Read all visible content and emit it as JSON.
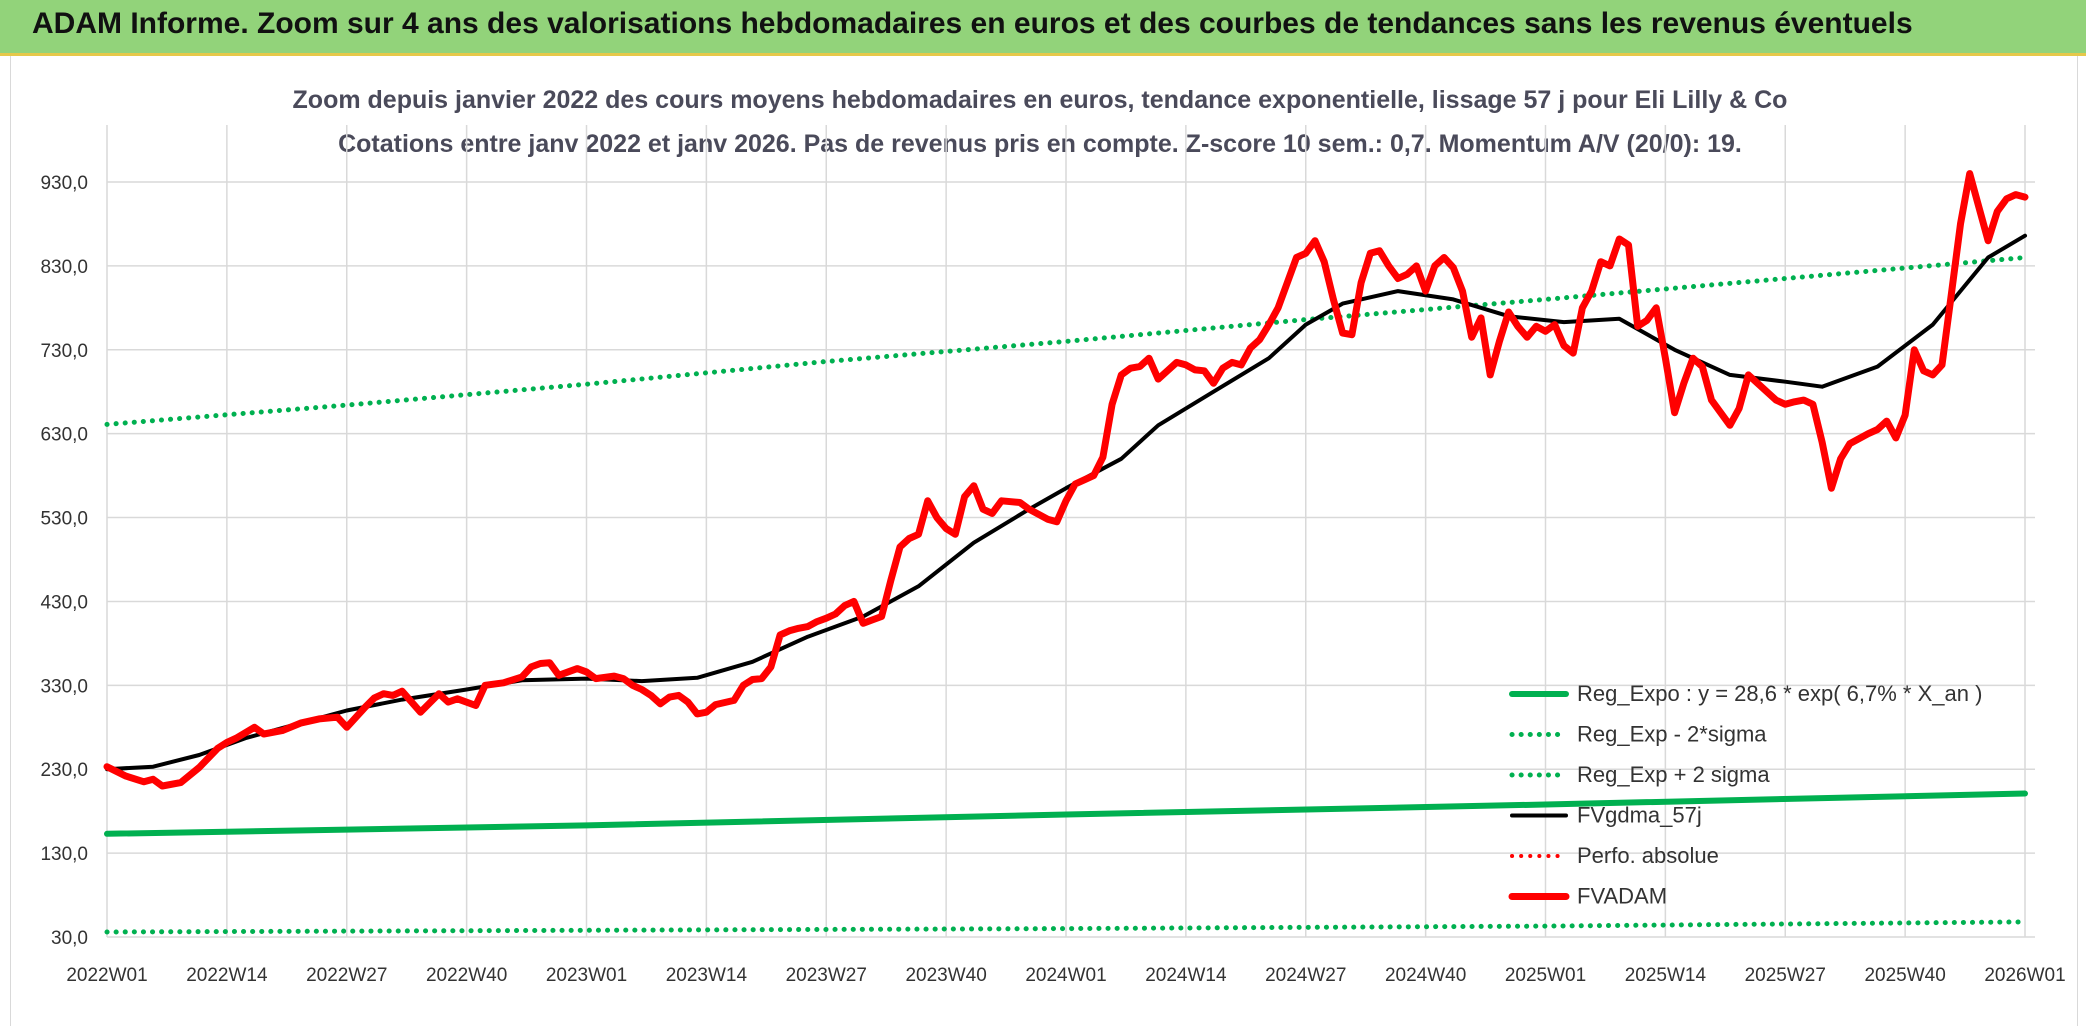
{
  "banner": {
    "title": "ADAM Informe. Zoom sur 4 ans des valorisations hebdomadaires en euros et des courbes de tendances sans les revenus éventuels"
  },
  "chart_data": {
    "type": "line",
    "title": "Zoom depuis janvier 2022 des cours moyens hebdomadaires en euros, tendance exponentielle, lissage 57 j pour Eli Lilly & Co",
    "subtitle": "Cotations entre janv 2022 et janv 2026. Pas de revenus pris en compte. Z-score 10 sem.: 0,7. Momentum A/V (20/0): 19.",
    "xlabel": "",
    "ylabel": "",
    "ylim": [
      30,
      980
    ],
    "grid": true,
    "y_ticks": [
      30,
      130,
      230,
      330,
      430,
      530,
      630,
      730,
      830,
      930
    ],
    "y_tick_labels": [
      "30,0",
      "130,0",
      "230,0",
      "330,0",
      "430,0",
      "530,0",
      "630,0",
      "730,0",
      "830,0",
      "930,0"
    ],
    "x_range_weeks": [
      0,
      208
    ],
    "x_ticks": [
      {
        "week": 0,
        "label": "2022W01"
      },
      {
        "week": 13,
        "label": "2022W14"
      },
      {
        "week": 26,
        "label": "2022W27"
      },
      {
        "week": 39,
        "label": "2022W40"
      },
      {
        "week": 52,
        "label": "2023W01"
      },
      {
        "week": 65,
        "label": "2023W14"
      },
      {
        "week": 78,
        "label": "2023W27"
      },
      {
        "week": 91,
        "label": "2023W40"
      },
      {
        "week": 104,
        "label": "2024W01"
      },
      {
        "week": 117,
        "label": "2024W14"
      },
      {
        "week": 130,
        "label": "2024W27"
      },
      {
        "week": 143,
        "label": "2024W40"
      },
      {
        "week": 156,
        "label": "2025W01"
      },
      {
        "week": 169,
        "label": "2025W14"
      },
      {
        "week": 182,
        "label": "2025W27"
      },
      {
        "week": 195,
        "label": "2025W40"
      },
      {
        "week": 208,
        "label": "2026W01"
      }
    ],
    "series": [
      {
        "name": "Reg_Expo : y = 28,6 * exp( 6,7% *  X_an )",
        "color": "#00b050",
        "style": "solid",
        "width": 6,
        "points": [
          [
            0,
            153
          ],
          [
            52,
            163
          ],
          [
            104,
            176
          ],
          [
            156,
            188
          ],
          [
            208,
            201
          ]
        ]
      },
      {
        "name": "Reg_Exp - 2*sigma",
        "color": "#00b050",
        "style": "dotted",
        "width": 5,
        "points": [
          [
            0,
            36
          ],
          [
            52,
            38
          ],
          [
            104,
            40
          ],
          [
            156,
            43
          ],
          [
            208,
            48
          ]
        ]
      },
      {
        "name": "Reg_Exp + 2 sigma",
        "color": "#00b050",
        "style": "dotted",
        "width": 5,
        "points": [
          [
            0,
            641
          ],
          [
            26,
            664
          ],
          [
            52,
            689
          ],
          [
            78,
            716
          ],
          [
            104,
            740
          ],
          [
            130,
            766
          ],
          [
            156,
            790
          ],
          [
            182,
            815
          ],
          [
            208,
            840
          ]
        ]
      },
      {
        "name": "FVgdma_57j",
        "color": "#000000",
        "style": "solid",
        "width": 4,
        "points": [
          [
            0,
            230
          ],
          [
            5,
            233
          ],
          [
            10,
            247
          ],
          [
            15,
            267
          ],
          [
            20,
            282
          ],
          [
            26,
            300
          ],
          [
            32,
            313
          ],
          [
            39,
            325
          ],
          [
            45,
            336
          ],
          [
            52,
            338
          ],
          [
            58,
            335
          ],
          [
            64,
            339
          ],
          [
            70,
            358
          ],
          [
            76,
            388
          ],
          [
            82,
            412
          ],
          [
            88,
            448
          ],
          [
            94,
            500
          ],
          [
            100,
            540
          ],
          [
            104,
            565
          ],
          [
            110,
            600
          ],
          [
            114,
            640
          ],
          [
            120,
            680
          ],
          [
            126,
            720
          ],
          [
            130,
            760
          ],
          [
            134,
            785
          ],
          [
            140,
            800
          ],
          [
            146,
            790
          ],
          [
            152,
            770
          ],
          [
            158,
            763
          ],
          [
            164,
            767
          ],
          [
            170,
            730
          ],
          [
            176,
            700
          ],
          [
            182,
            692
          ],
          [
            186,
            686
          ],
          [
            192,
            710
          ],
          [
            198,
            760
          ],
          [
            204,
            840
          ],
          [
            208,
            866
          ]
        ]
      },
      {
        "name": "Perfo. absolue",
        "color": "#ff0000",
        "style": "dotted",
        "width": 4,
        "points": []
      },
      {
        "name": "FVADAM",
        "color": "#ff0000",
        "style": "solid",
        "width": 7,
        "points": [
          [
            0,
            233
          ],
          [
            2,
            222
          ],
          [
            4,
            215
          ],
          [
            5,
            218
          ],
          [
            6,
            210
          ],
          [
            8,
            214
          ],
          [
            10,
            232
          ],
          [
            12,
            255
          ],
          [
            13,
            262
          ],
          [
            14,
            267
          ],
          [
            16,
            280
          ],
          [
            17,
            272
          ],
          [
            19,
            276
          ],
          [
            21,
            285
          ],
          [
            23,
            290
          ],
          [
            25,
            292
          ],
          [
            26,
            280
          ],
          [
            28,
            304
          ],
          [
            29,
            315
          ],
          [
            30,
            320
          ],
          [
            31,
            318
          ],
          [
            32,
            323
          ],
          [
            34,
            298
          ],
          [
            36,
            320
          ],
          [
            37,
            310
          ],
          [
            38,
            314
          ],
          [
            40,
            306
          ],
          [
            41,
            330
          ],
          [
            43,
            333
          ],
          [
            45,
            340
          ],
          [
            46,
            352
          ],
          [
            47,
            356
          ],
          [
            48,
            357
          ],
          [
            49,
            342
          ],
          [
            51,
            350
          ],
          [
            52,
            346
          ],
          [
            53,
            338
          ],
          [
            55,
            341
          ],
          [
            56,
            338
          ],
          [
            57,
            330
          ],
          [
            58,
            325
          ],
          [
            59,
            318
          ],
          [
            60,
            308
          ],
          [
            61,
            316
          ],
          [
            62,
            318
          ],
          [
            63,
            310
          ],
          [
            64,
            296
          ],
          [
            65,
            298
          ],
          [
            66,
            307
          ],
          [
            68,
            312
          ],
          [
            69,
            330
          ],
          [
            70,
            337
          ],
          [
            71,
            338
          ],
          [
            72,
            352
          ],
          [
            73,
            390
          ],
          [
            74,
            395
          ],
          [
            75,
            398
          ],
          [
            76,
            400
          ],
          [
            77,
            406
          ],
          [
            78,
            410
          ],
          [
            79,
            415
          ],
          [
            80,
            425
          ],
          [
            81,
            430
          ],
          [
            82,
            404
          ],
          [
            83,
            408
          ],
          [
            84,
            412
          ],
          [
            85,
            455
          ],
          [
            86,
            495
          ],
          [
            87,
            505
          ],
          [
            88,
            510
          ],
          [
            89,
            550
          ],
          [
            90,
            530
          ],
          [
            91,
            517
          ],
          [
            92,
            510
          ],
          [
            93,
            555
          ],
          [
            94,
            568
          ],
          [
            95,
            540
          ],
          [
            96,
            535
          ],
          [
            97,
            550
          ],
          [
            99,
            548
          ],
          [
            100,
            540
          ],
          [
            102,
            528
          ],
          [
            103,
            525
          ],
          [
            104,
            550
          ],
          [
            105,
            570
          ],
          [
            106,
            575
          ],
          [
            107,
            580
          ],
          [
            108,
            602
          ],
          [
            109,
            665
          ],
          [
            110,
            700
          ],
          [
            111,
            708
          ],
          [
            112,
            710
          ],
          [
            113,
            720
          ],
          [
            114,
            695
          ],
          [
            115,
            705
          ],
          [
            116,
            715
          ],
          [
            117,
            712
          ],
          [
            118,
            706
          ],
          [
            119,
            705
          ],
          [
            120,
            690
          ],
          [
            121,
            708
          ],
          [
            122,
            715
          ],
          [
            123,
            712
          ],
          [
            124,
            732
          ],
          [
            125,
            742
          ],
          [
            126,
            760
          ],
          [
            127,
            780
          ],
          [
            128,
            810
          ],
          [
            129,
            840
          ],
          [
            130,
            845
          ],
          [
            131,
            860
          ],
          [
            132,
            835
          ],
          [
            133,
            790
          ],
          [
            134,
            750
          ],
          [
            135,
            748
          ],
          [
            136,
            810
          ],
          [
            137,
            845
          ],
          [
            138,
            848
          ],
          [
            139,
            830
          ],
          [
            140,
            815
          ],
          [
            141,
            820
          ],
          [
            142,
            830
          ],
          [
            143,
            800
          ],
          [
            144,
            830
          ],
          [
            145,
            840
          ],
          [
            146,
            828
          ],
          [
            147,
            800
          ],
          [
            148,
            745
          ],
          [
            149,
            768
          ],
          [
            150,
            700
          ],
          [
            151,
            740
          ],
          [
            152,
            775
          ],
          [
            153,
            758
          ],
          [
            154,
            745
          ],
          [
            155,
            758
          ],
          [
            156,
            752
          ],
          [
            157,
            760
          ],
          [
            158,
            735
          ],
          [
            159,
            726
          ],
          [
            160,
            780
          ],
          [
            161,
            800
          ],
          [
            162,
            835
          ],
          [
            163,
            830
          ],
          [
            164,
            862
          ],
          [
            165,
            855
          ],
          [
            166,
            758
          ],
          [
            167,
            765
          ],
          [
            168,
            780
          ],
          [
            169,
            720
          ],
          [
            170,
            655
          ],
          [
            171,
            690
          ],
          [
            172,
            720
          ],
          [
            173,
            710
          ],
          [
            174,
            670
          ],
          [
            175,
            655
          ],
          [
            176,
            640
          ],
          [
            177,
            660
          ],
          [
            178,
            700
          ],
          [
            179,
            690
          ],
          [
            180,
            680
          ],
          [
            181,
            670
          ],
          [
            182,
            665
          ],
          [
            183,
            668
          ],
          [
            184,
            670
          ],
          [
            185,
            665
          ],
          [
            186,
            620
          ],
          [
            187,
            565
          ],
          [
            188,
            600
          ],
          [
            189,
            618
          ],
          [
            191,
            630
          ],
          [
            192,
            635
          ],
          [
            193,
            645
          ],
          [
            194,
            625
          ],
          [
            195,
            652
          ],
          [
            196,
            730
          ],
          [
            197,
            705
          ],
          [
            198,
            700
          ],
          [
            199,
            712
          ],
          [
            200,
            795
          ],
          [
            201,
            880
          ],
          [
            202,
            940
          ],
          [
            203,
            900
          ],
          [
            204,
            860
          ],
          [
            205,
            895
          ],
          [
            206,
            910
          ],
          [
            207,
            915
          ],
          [
            208,
            912
          ]
        ]
      }
    ]
  }
}
